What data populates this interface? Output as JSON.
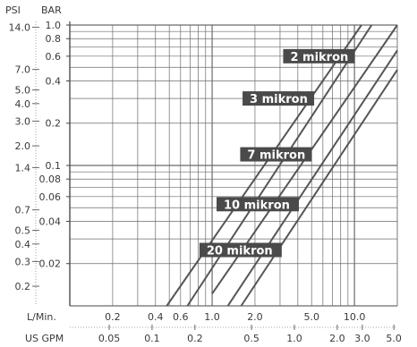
{
  "chart_data": {
    "type": "line",
    "title": "",
    "xlabel": "",
    "ylabel": "",
    "axis_scale": "log-log",
    "grid": true,
    "units": {
      "psi": "PSI",
      "bar": "BAR",
      "lmin": "L/Min.",
      "gpm": "US GPM"
    },
    "psi_ticks": [
      "14.0",
      "7.0",
      "5.0",
      "4.0",
      "3.0",
      "2.0",
      "1.4",
      "0.7",
      "0.5",
      "0.4",
      "0.3",
      "0.2"
    ],
    "bar_ticks": [
      "1.0",
      "0.8",
      "0.6",
      "0.4",
      "0.2",
      "0.1",
      "0.08",
      "0.06",
      "0.04",
      "0.02"
    ],
    "lmin_ticks": [
      "0.2",
      "0.4",
      "0.6",
      "1.0",
      "2.0",
      "5.0",
      "10.0"
    ],
    "gpm_ticks": [
      "0.05",
      "0.1",
      "0.2",
      "0.5",
      "1.0",
      "2.0",
      "3.0",
      "5.0"
    ],
    "xlim_lmin": [
      0.1,
      20
    ],
    "ylim_bar": [
      0.01,
      1.0
    ],
    "series": [
      {
        "name": "2 mikron",
        "x_lmin": [
          0.67,
          13.2
        ],
        "y_bar": [
          0.01,
          1.0
        ]
      },
      {
        "name": "3 mikron",
        "x_lmin": [
          0.48,
          11.2
        ],
        "y_bar": [
          0.01,
          1.0
        ]
      },
      {
        "name": "7 mikron",
        "x_lmin": [
          1.0,
          20
        ],
        "y_bar": [
          0.0122,
          1.0
        ]
      },
      {
        "name": "10 mikron",
        "x_lmin": [
          1.29,
          20
        ],
        "y_bar": [
          0.01,
          0.66
        ]
      },
      {
        "name": "20 mikron",
        "x_lmin": [
          1.6,
          20
        ],
        "y_bar": [
          0.01,
          0.48
        ]
      }
    ],
    "label_colors": {
      "box": "#4a4a4a",
      "line": "#555555",
      "grid": "#6b6b6b"
    }
  }
}
